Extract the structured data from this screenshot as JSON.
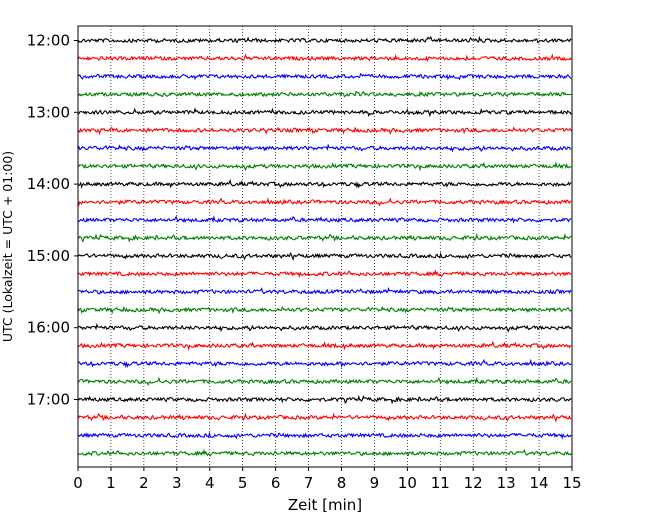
{
  "chart_data": {
    "type": "line",
    "title": "",
    "xlabel": "Zeit  [min]",
    "ylabel": "UTC (Lokalzeit = UTC + 01:00)",
    "xlim": [
      0,
      15
    ],
    "x_ticks": [
      "0",
      "1",
      "2",
      "3",
      "4",
      "5",
      "6",
      "7",
      "8",
      "9",
      "10",
      "11",
      "12",
      "13",
      "14",
      "15"
    ],
    "y_tick_labels": [
      "12:00",
      "13:00",
      "14:00",
      "15:00",
      "16:00",
      "17:00"
    ],
    "grid": "vertical dotted at each minute",
    "trace_interval_minutes": 15,
    "traces": [
      {
        "start": "12:00",
        "color": "#000000"
      },
      {
        "start": "12:15",
        "color": "#ff0000"
      },
      {
        "start": "12:30",
        "color": "#0000ff"
      },
      {
        "start": "12:45",
        "color": "#008000"
      },
      {
        "start": "13:00",
        "color": "#000000"
      },
      {
        "start": "13:15",
        "color": "#ff0000"
      },
      {
        "start": "13:30",
        "color": "#0000ff"
      },
      {
        "start": "13:45",
        "color": "#008000"
      },
      {
        "start": "14:00",
        "color": "#000000"
      },
      {
        "start": "14:15",
        "color": "#ff0000"
      },
      {
        "start": "14:30",
        "color": "#0000ff"
      },
      {
        "start": "14:45",
        "color": "#008000"
      },
      {
        "start": "15:00",
        "color": "#000000"
      },
      {
        "start": "15:15",
        "color": "#ff0000"
      },
      {
        "start": "15:30",
        "color": "#0000ff"
      },
      {
        "start": "15:45",
        "color": "#008000"
      },
      {
        "start": "16:00",
        "color": "#000000"
      },
      {
        "start": "16:15",
        "color": "#ff0000"
      },
      {
        "start": "16:30",
        "color": "#0000ff"
      },
      {
        "start": "16:45",
        "color": "#008000"
      },
      {
        "start": "17:00",
        "color": "#000000"
      },
      {
        "start": "17:15",
        "color": "#ff0000"
      },
      {
        "start": "17:30",
        "color": "#0000ff"
      },
      {
        "start": "17:45",
        "color": "#008000"
      }
    ]
  }
}
